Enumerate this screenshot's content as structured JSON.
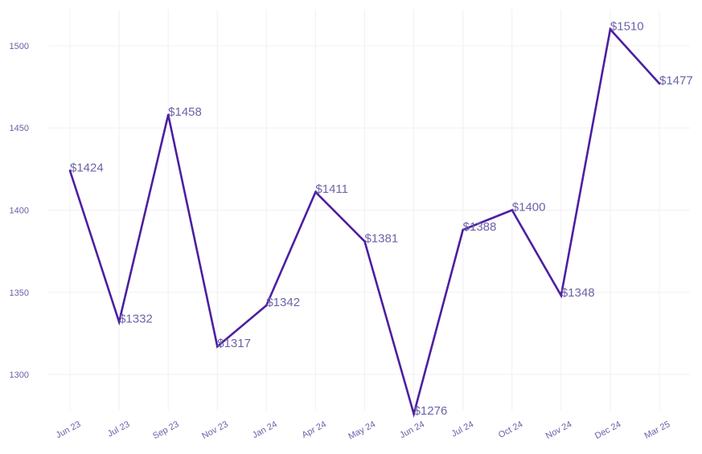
{
  "chart_data": {
    "type": "line",
    "title": "",
    "xlabel": "",
    "ylabel": "",
    "categories": [
      "Jun 23",
      "Jul 23",
      "Sep 23",
      "Nov 23",
      "Jan 24",
      "Apr 24",
      "May 24",
      "Jun 24",
      "Jul 24",
      "Oct 24",
      "Nov 24",
      "Dec 24",
      "Mar 25"
    ],
    "values": [
      1424,
      1332,
      1458,
      1317,
      1342,
      1411,
      1381,
      1276,
      1388,
      1400,
      1348,
      1510,
      1477
    ],
    "data_labels": [
      "$1424",
      "$1332",
      "$1458",
      "$1317",
      "$1342",
      "$1411",
      "$1381",
      "$1276",
      "$1388",
      "$1400",
      "$1348",
      "$1510",
      "$1477"
    ],
    "ylim": [
      1278,
      1522
    ],
    "yticks": [
      1300,
      1350,
      1400,
      1450,
      1500
    ],
    "grid": true,
    "legend": "none",
    "colors": {
      "line": "#4b1fa0",
      "labels": "#6d64a8",
      "ticks": "#6a5fa8",
      "grid": "#f0eff6"
    }
  }
}
